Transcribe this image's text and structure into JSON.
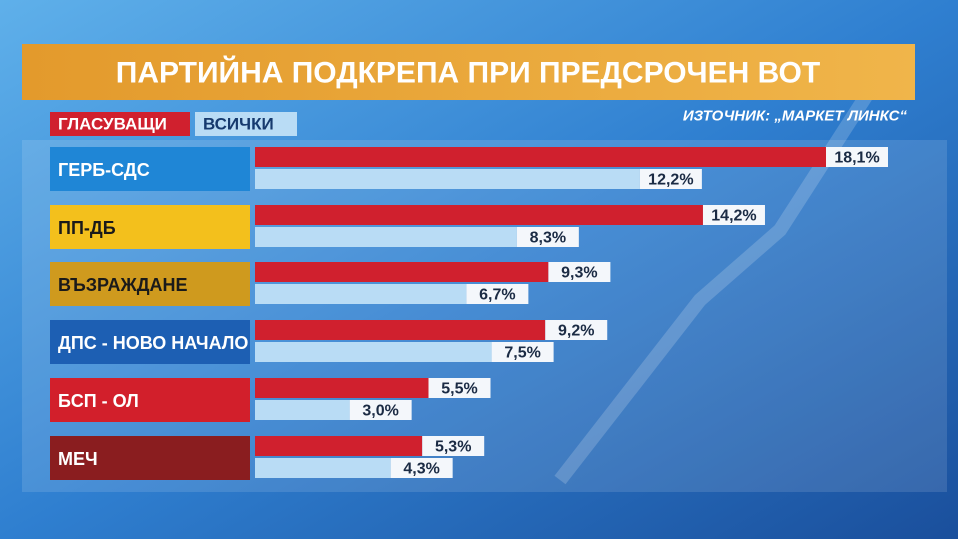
{
  "chart_data": {
    "type": "bar",
    "orientation": "horizontal",
    "title": "ПАРТИЙНА ПОДКРЕПА ПРИ ПРЕДСРОЧЕН ВОТ",
    "source": "ИЗТОЧНИК: „МАРКЕТ ЛИНКС“",
    "categories": [
      "ГЕРБ-СДС",
      "ПП-ДБ",
      "ВЪЗРАЖДАНЕ",
      "ДПС - НОВО НАЧАЛО",
      "БСП - ОЛ",
      "МЕЧ"
    ],
    "category_colors": [
      "#1f86d6",
      "#f3c01c",
      "#cf9a1e",
      "#1d5fb3",
      "#d21f2b",
      "#8a1d1f"
    ],
    "category_text_colors": [
      "#ffffff",
      "#1a1a1a",
      "#1a1a1a",
      "#ffffff",
      "#ffffff",
      "#ffffff"
    ],
    "series": [
      {
        "name": "ГЛАСУВАЩИ",
        "color": "#d0202e",
        "values": [
          18.1,
          14.2,
          9.3,
          9.2,
          5.5,
          5.3
        ],
        "value_labels": [
          "18,1%",
          "14,2%",
          "9,3%",
          "9,2%",
          "5,5%",
          "5,3%"
        ]
      },
      {
        "name": "ВСИЧКИ",
        "color": "#b9dcf5",
        "values": [
          12.2,
          8.3,
          6.7,
          7.5,
          3.0,
          4.3
        ],
        "value_labels": [
          "12,2%",
          "8,3%",
          "6,7%",
          "7,5%",
          "3,0%",
          "4,3%"
        ]
      }
    ]
  }
}
